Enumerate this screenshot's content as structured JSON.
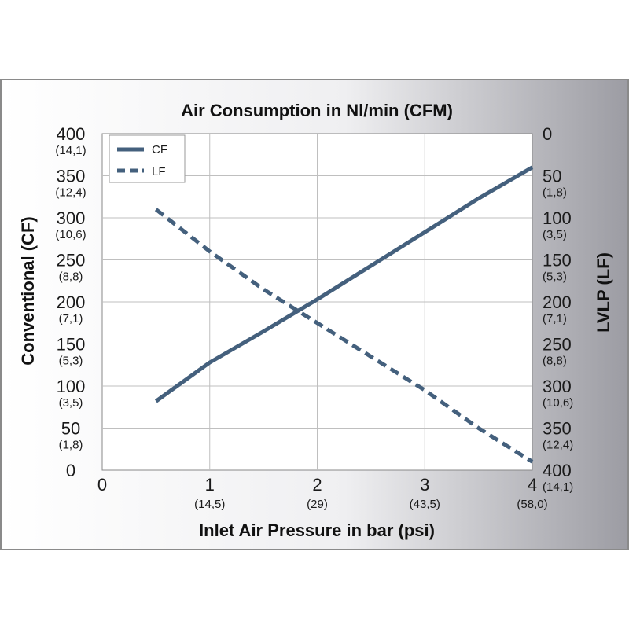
{
  "chart_data": {
    "type": "line",
    "title": "Air Consumption in Nl/min (CFM)",
    "xlabel": "Inlet Air Pressure in bar (psi)",
    "ylabel_left": "Conventional (CF)",
    "ylabel_right": "LVLP (LF)",
    "xlim": [
      0,
      4
    ],
    "ylim_left": [
      0,
      400
    ],
    "ylim_right": [
      0,
      400
    ],
    "right_axis_inverted": true,
    "grid": true,
    "legend_position": "top-left",
    "x_ticks": [
      {
        "value": 0,
        "label": "0",
        "sub": ""
      },
      {
        "value": 1,
        "label": "1",
        "sub": "(14,5)"
      },
      {
        "value": 2,
        "label": "2",
        "sub": "(29)"
      },
      {
        "value": 3,
        "label": "3",
        "sub": "(43,5)"
      },
      {
        "value": 4,
        "label": "4",
        "sub": "(58,0)"
      }
    ],
    "y_left_ticks": [
      {
        "value": 0,
        "label": "0",
        "sub": ""
      },
      {
        "value": 50,
        "label": "50",
        "sub": "(1,8)"
      },
      {
        "value": 100,
        "label": "100",
        "sub": "(3,5)"
      },
      {
        "value": 150,
        "label": "150",
        "sub": "(5,3)"
      },
      {
        "value": 200,
        "label": "200",
        "sub": "(7,1)"
      },
      {
        "value": 250,
        "label": "250",
        "sub": "(8,8)"
      },
      {
        "value": 300,
        "label": "300",
        "sub": "(10,6)"
      },
      {
        "value": 350,
        "label": "350",
        "sub": "(12,4)"
      },
      {
        "value": 400,
        "label": "400",
        "sub": "(14,1)"
      }
    ],
    "y_right_ticks": [
      {
        "value": 0,
        "label": "0",
        "sub": ""
      },
      {
        "value": 50,
        "label": "50",
        "sub": "(1,8)"
      },
      {
        "value": 100,
        "label": "100",
        "sub": "(3,5)"
      },
      {
        "value": 150,
        "label": "150",
        "sub": "(5,3)"
      },
      {
        "value": 200,
        "label": "200",
        "sub": "(7,1)"
      },
      {
        "value": 250,
        "label": "250",
        "sub": "(8,8)"
      },
      {
        "value": 300,
        "label": "300",
        "sub": "(10,6)"
      },
      {
        "value": 350,
        "label": "350",
        "sub": "(12,4)"
      },
      {
        "value": 400,
        "label": "400",
        "sub": "(14,1)"
      }
    ],
    "series": [
      {
        "name": "CF",
        "axis": "left",
        "style": "solid",
        "x": [
          0.5,
          1.0,
          1.5,
          2.0,
          2.5,
          3.0,
          3.5,
          4.0
        ],
        "y": [
          82,
          128,
          165,
          203,
          243,
          283,
          323,
          360
        ]
      },
      {
        "name": "LF",
        "axis": "right",
        "style": "dashed",
        "x": [
          0.5,
          1.0,
          1.5,
          2.0,
          2.5,
          3.0,
          3.5,
          4.0
        ],
        "y": [
          90,
          140,
          185,
          225,
          265,
          305,
          350,
          390
        ]
      }
    ],
    "line_color": "#44607d"
  }
}
